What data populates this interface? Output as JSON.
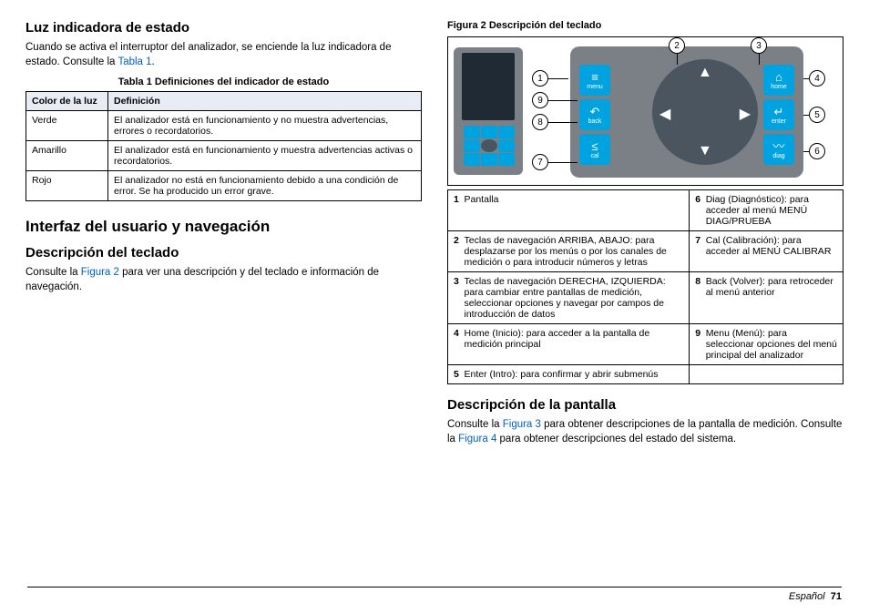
{
  "left": {
    "h2a": "Luz indicadora de estado",
    "p1a": "Cuando se activa el interruptor del analizador, se enciende la luz indicadora de estado. Consulte la ",
    "p1link": "Tabla 1",
    "p1b": ".",
    "t1cap": "Tabla 1  Definiciones del indicador de estado",
    "t1h1": "Color de la luz",
    "t1h2": "Definición",
    "t1": [
      [
        "Verde",
        "El analizador está en funcionamiento y no muestra advertencias, errores o recordatorios."
      ],
      [
        "Amarillo",
        "El analizador está en funcionamiento y muestra advertencias activas o recordatorios."
      ],
      [
        "Rojo",
        "El analizador no está en funcionamiento debido a una condición de error. Se ha producido un error grave."
      ]
    ],
    "h1": "Interfaz del usuario y navegación",
    "h2b": "Descripción del teclado",
    "p2a": "Consulte la ",
    "p2link": "Figura 2",
    "p2b": " para ver una descripción y del teclado e información de navegación."
  },
  "right": {
    "figcap": "Figura 2  Descripción del teclado",
    "keys": {
      "menu": "menu",
      "home": "home",
      "back": "back",
      "enter": "enter",
      "cal": "cal",
      "diag": "diag"
    },
    "t2": [
      [
        "1",
        "Pantalla",
        "6",
        "Diag (Diagnóstico): para acceder al menú MENÚ DIAG/PRUEBA"
      ],
      [
        "2",
        "Teclas de navegación ARRIBA, ABAJO: para desplazarse por los menús o por los canales de medición o para introducir números y letras",
        "7",
        "Cal (Calibración): para acceder al MENÚ CALIBRAR"
      ],
      [
        "3",
        "Teclas de navegación DERECHA, IZQUIERDA: para cambiar entre pantallas de medición, seleccionar opciones y navegar por campos de introducción de datos",
        "8",
        "Back (Volver): para retroceder al menú anterior"
      ],
      [
        "4",
        "Home (Inicio): para acceder a la pantalla de medición principal",
        "9",
        "Menu (Menú): para seleccionar opciones del menú principal del analizador"
      ],
      [
        "5",
        "Enter (Intro): para confirmar y abrir submenús",
        "",
        ""
      ]
    ],
    "h2c": "Descripción de la pantalla",
    "p3a": "Consulte la ",
    "p3l1": "Figura 3",
    "p3b": " para obtener descripciones de la pantalla de medición. Consulte la ",
    "p3l2": "Figura 4",
    "p3c": " para obtener descripciones del estado del sistema."
  },
  "footer": {
    "lang": "Español",
    "page": "71"
  },
  "colors": {
    "link": "#0060c0",
    "keypad_bg": "#7a8086",
    "btn": "#00a3e0",
    "disc": "#4b5560",
    "screen": "#1f2a34"
  }
}
